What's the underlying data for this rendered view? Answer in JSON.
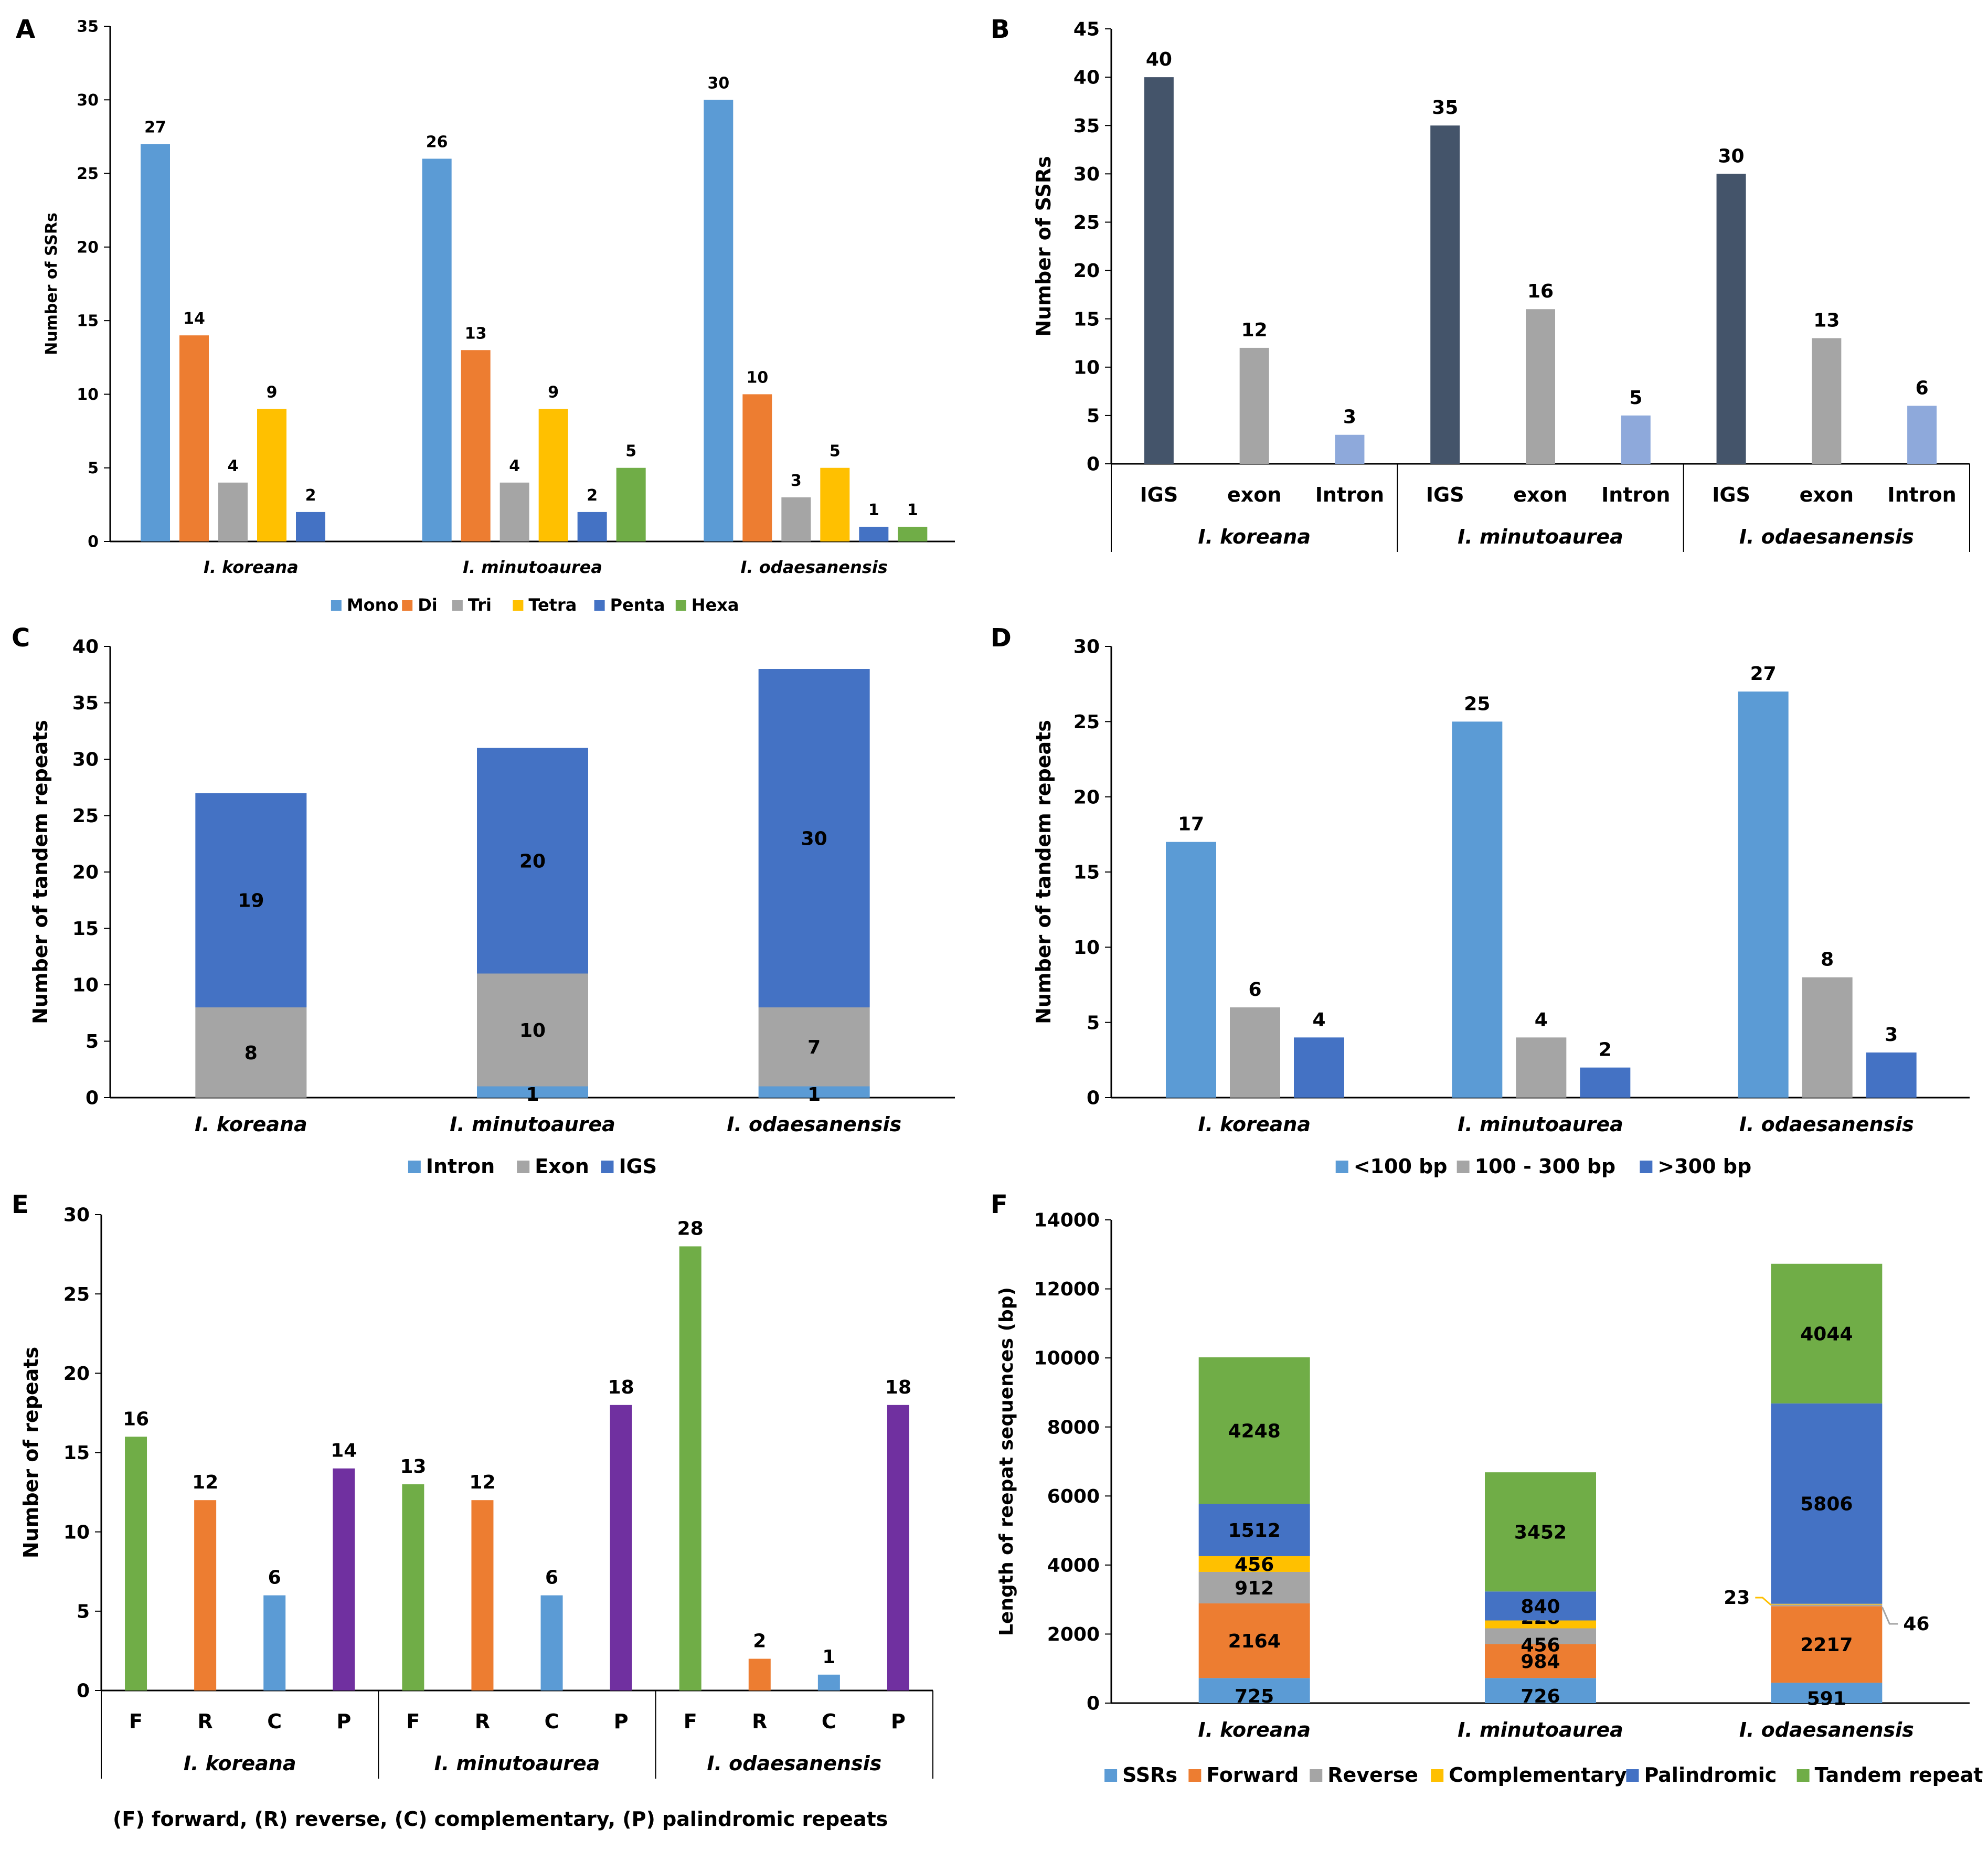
{
  "colors": {
    "mono": "#5B9BD5",
    "di": "#ED7D31",
    "tri": "#A5A5A5",
    "tetra": "#FFC000",
    "penta": "#4472C4",
    "hexa": "#70AD47",
    "igs_dark": "#44546A",
    "intron_light": "#8EA9DB",
    "purple": "#7030A0",
    "axis": "#000000"
  },
  "note": "(F) forward, (R) reverse, (C) complementary, (P) palindromic repeats",
  "chart_data": [
    {
      "id": "A",
      "type": "bar",
      "panel_label": "A",
      "categories": [
        "I. koreana",
        "I. minutoaurea",
        "I. odaesanensis"
      ],
      "ylabel": "Number of SSRs",
      "ylim": [
        0,
        35
      ],
      "yticks": [
        0,
        5,
        10,
        15,
        20,
        25,
        30,
        35
      ],
      "series": [
        {
          "name": "Mono",
          "color": "#5B9BD5",
          "values": [
            27,
            26,
            30
          ]
        },
        {
          "name": "Di",
          "color": "#ED7D31",
          "values": [
            14,
            13,
            10
          ]
        },
        {
          "name": "Tri",
          "color": "#A5A5A5",
          "values": [
            4,
            4,
            3
          ]
        },
        {
          "name": "Tetra",
          "color": "#FFC000",
          "values": [
            9,
            9,
            5
          ]
        },
        {
          "name": "Penta",
          "color": "#4472C4",
          "values": [
            2,
            2,
            1
          ]
        },
        {
          "name": "Hexa",
          "color": "#70AD47",
          "values": [
            null,
            5,
            1
          ]
        }
      ]
    },
    {
      "id": "B",
      "type": "bar",
      "panel_label": "B",
      "groups": [
        "I. koreana",
        "I. minutoaurea",
        "I. odaesanensis"
      ],
      "subcategories": [
        "IGS",
        "exon",
        "Intron"
      ],
      "subcolors": [
        "#44546A",
        "#A5A5A5",
        "#8EA9DB"
      ],
      "values": [
        [
          40,
          12,
          3
        ],
        [
          35,
          16,
          5
        ],
        [
          30,
          13,
          6
        ]
      ],
      "ylabel": "Number of SSRs",
      "ylim": [
        0,
        45
      ],
      "yticks": [
        0,
        5,
        10,
        15,
        20,
        25,
        30,
        35,
        40,
        45
      ]
    },
    {
      "id": "C",
      "type": "bar",
      "stacked": true,
      "panel_label": "C",
      "categories": [
        "I. koreana",
        "I. minutoaurea",
        "I. odaesanensis"
      ],
      "ylabel": "Number of tandem repeats",
      "ylim": [
        0,
        40
      ],
      "yticks": [
        0,
        5,
        10,
        15,
        20,
        25,
        30,
        35,
        40
      ],
      "series": [
        {
          "name": "Intron",
          "color": "#5B9BD5",
          "values": [
            0,
            1,
            1
          ],
          "labels": [
            "",
            "1",
            "1"
          ]
        },
        {
          "name": "Exon",
          "color": "#A5A5A5",
          "values": [
            8,
            10,
            7
          ],
          "labels": [
            "8",
            "10",
            "7"
          ]
        },
        {
          "name": "IGS",
          "color": "#4472C4",
          "values": [
            19,
            20,
            30
          ],
          "labels": [
            "19",
            "20",
            "30"
          ]
        }
      ]
    },
    {
      "id": "D",
      "type": "bar",
      "panel_label": "D",
      "categories": [
        "I. koreana",
        "I. minutoaurea",
        "I. odaesanensis"
      ],
      "ylabel": "Number of tandem repeats",
      "ylim": [
        0,
        30
      ],
      "yticks": [
        0,
        5,
        10,
        15,
        20,
        25,
        30
      ],
      "series": [
        {
          "name": "<100 bp",
          "color": "#5B9BD5",
          "values": [
            17,
            25,
            27
          ]
        },
        {
          "name": "100 - 300 bp",
          "color": "#A5A5A5",
          "values": [
            6,
            4,
            8
          ]
        },
        {
          "name": ">300 bp",
          "color": "#4472C4",
          "values": [
            4,
            2,
            3
          ]
        }
      ]
    },
    {
      "id": "E",
      "type": "bar",
      "panel_label": "E",
      "groups": [
        "I. koreana",
        "I. minutoaurea",
        "I. odaesanensis"
      ],
      "subcategories": [
        "F",
        "R",
        "C",
        "P"
      ],
      "subcolors": [
        "#70AD47",
        "#ED7D31",
        "#5B9BD5",
        "#7030A0"
      ],
      "values": [
        [
          16,
          12,
          6,
          14
        ],
        [
          13,
          12,
          6,
          18
        ],
        [
          28,
          2,
          1,
          18
        ]
      ],
      "ylabel": "Number of repeats",
      "ylim": [
        0,
        30
      ],
      "yticks": [
        0,
        5,
        10,
        15,
        20,
        25,
        30
      ]
    },
    {
      "id": "F",
      "type": "bar",
      "stacked": true,
      "panel_label": "F",
      "categories": [
        "I. koreana",
        "I. minutoaurea",
        "I. odaesanensis"
      ],
      "ylabel": "Length of reepat sequences (bp)",
      "ylim": [
        0,
        14000
      ],
      "yticks": [
        0,
        2000,
        4000,
        6000,
        8000,
        10000,
        12000,
        14000
      ],
      "series": [
        {
          "name": "SSRs",
          "color": "#5B9BD5",
          "values": [
            725,
            726,
            591
          ],
          "labels": [
            "725",
            "726",
            "591"
          ]
        },
        {
          "name": "Forward",
          "color": "#ED7D31",
          "values": [
            2164,
            984,
            2217
          ],
          "labels": [
            "2164",
            "984",
            "2217"
          ]
        },
        {
          "name": "Reverse",
          "color": "#A5A5A5",
          "values": [
            912,
            456,
            46
          ],
          "labels": [
            "912",
            "456",
            ""
          ]
        },
        {
          "name": "Complementary",
          "color": "#FFC000",
          "values": [
            456,
            228,
            23
          ],
          "labels": [
            "456",
            "228",
            ""
          ]
        },
        {
          "name": "Palindromic",
          "color": "#4472C4",
          "values": [
            1512,
            840,
            5806
          ],
          "labels": [
            "1512",
            "840",
            "5806"
          ]
        },
        {
          "name": "Tandem repeat",
          "color": "#70AD47",
          "values": [
            4248,
            3452,
            4044
          ],
          "labels": [
            "4248",
            "3452",
            "4044"
          ]
        }
      ],
      "callouts": [
        "23",
        "46"
      ]
    }
  ]
}
